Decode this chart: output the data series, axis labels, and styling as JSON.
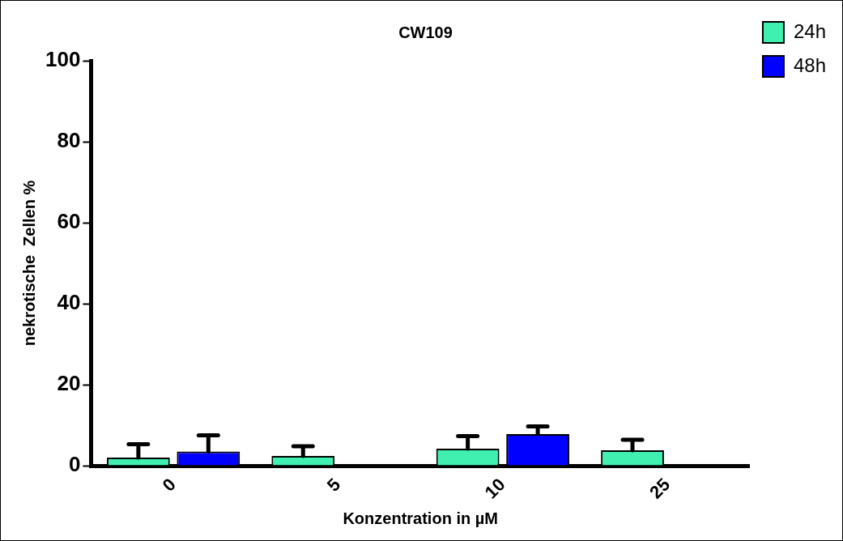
{
  "chart_data": {
    "type": "bar",
    "title": "CW109",
    "xlabel": "Konzentration in µM",
    "ylabel": "nekrotische  Zellen %",
    "categories": [
      "0",
      "5",
      "10",
      "25"
    ],
    "series": [
      {
        "name": "24h",
        "color": "#40f0b0",
        "values": [
          2,
          2.4,
          4.2,
          3.8
        ],
        "errors": [
          [
            2,
            5.3
          ],
          [
            2.4,
            4.8
          ],
          [
            4.2,
            7.3
          ],
          [
            3.8,
            6.4
          ]
        ]
      },
      {
        "name": "48h",
        "color": "#0000ff",
        "values": [
          3.5,
          null,
          7.8,
          null
        ],
        "errors": [
          [
            3.5,
            7.5
          ],
          null,
          [
            7.8,
            9.7
          ],
          null
        ]
      }
    ],
    "ylim": [
      0,
      100
    ],
    "yticks": [
      0,
      20,
      40,
      60,
      80,
      100
    ],
    "grid": false,
    "legend": "top right"
  }
}
